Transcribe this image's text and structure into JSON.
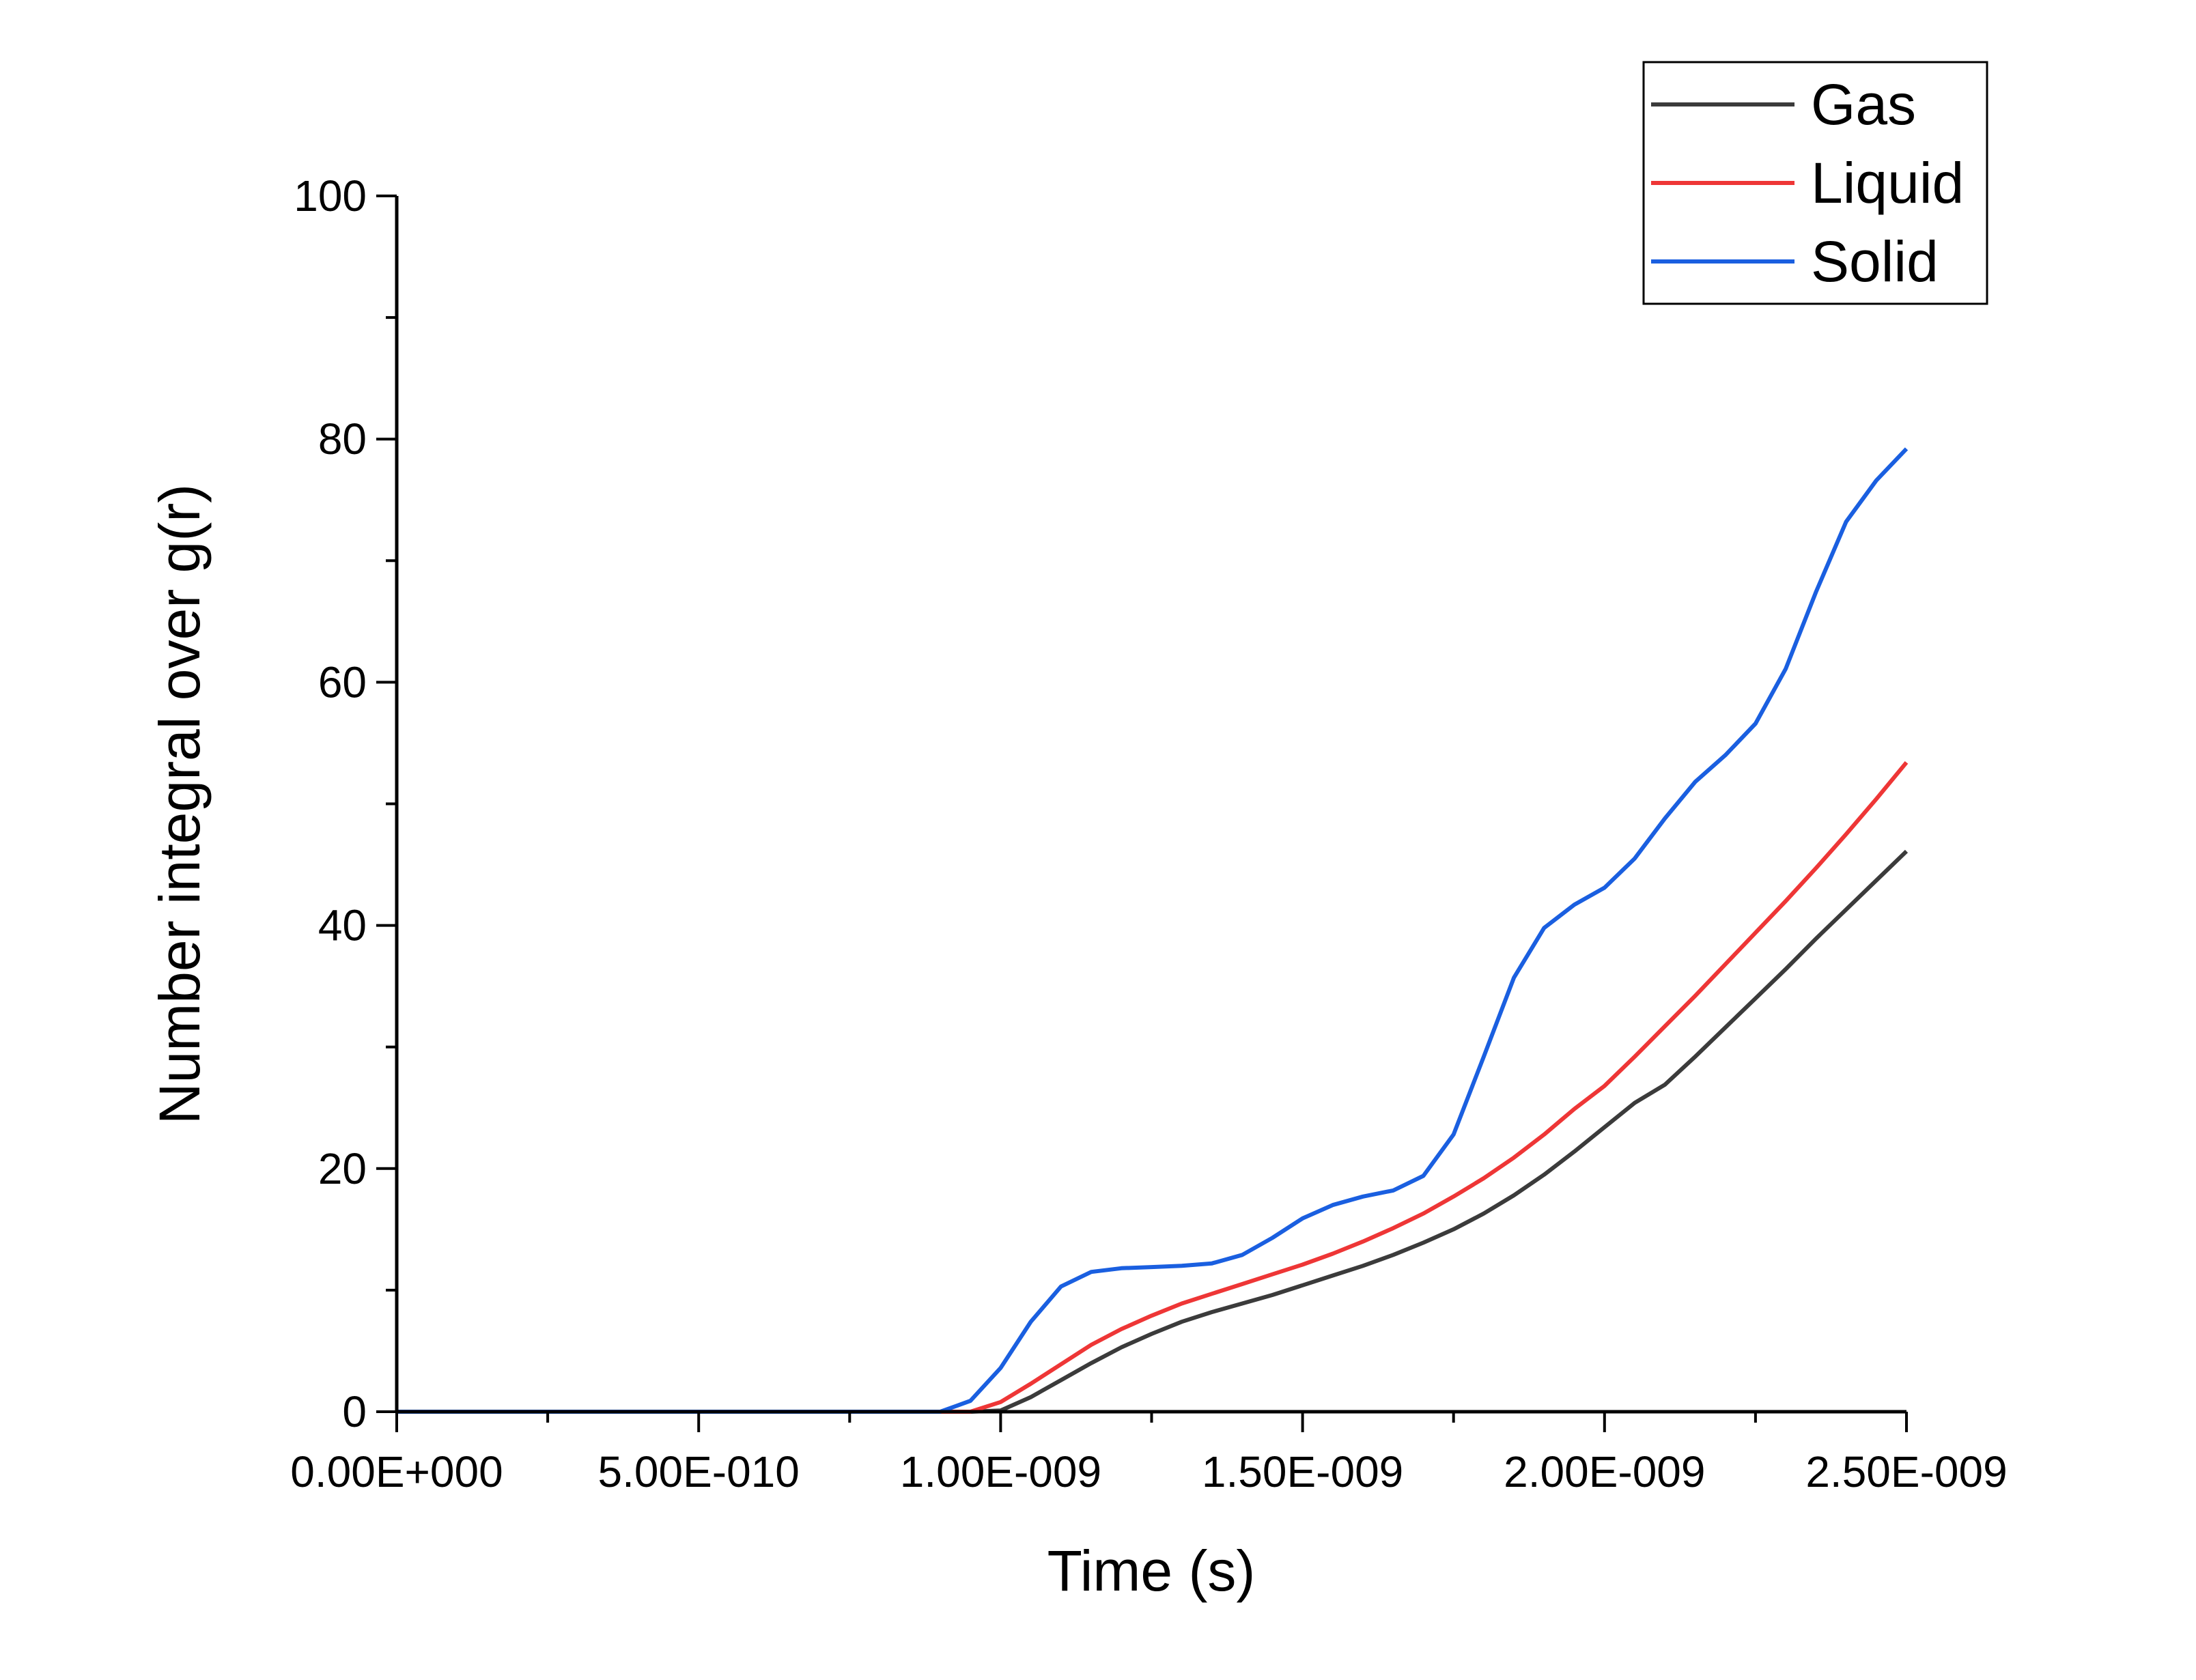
{
  "chart_data": {
    "type": "line",
    "title": "",
    "xlabel": "Time (s)",
    "ylabel": "Number integral over g(r)",
    "xlim": [
      0,
      2.5e-09
    ],
    "ylim": [
      0,
      100
    ],
    "x_ticks": [
      0,
      5e-10,
      1e-09,
      1.5e-09,
      2e-09,
      2.5e-09
    ],
    "x_tick_labels": [
      "0.00E+000",
      "5.00E-010",
      "1.00E-009",
      "1.50E-009",
      "2.00E-009",
      "2.50E-009"
    ],
    "y_ticks": [
      0,
      20,
      40,
      60,
      80,
      100
    ],
    "y_tick_labels": [
      "0",
      "20",
      "40",
      "60",
      "80",
      "100"
    ],
    "grid": false,
    "legend_position": "top-right",
    "x": [
      0,
      5e-11,
      1e-10,
      1.5e-10,
      2e-10,
      2.5e-10,
      3e-10,
      3.5e-10,
      4e-10,
      4.5e-10,
      5e-10,
      5.5e-10,
      6e-10,
      6.5e-10,
      7e-10,
      7.5e-10,
      8e-10,
      8.5e-10,
      9e-10,
      9.5e-10,
      1e-09,
      1.05e-09,
      1.1e-09,
      1.15e-09,
      1.2e-09,
      1.25e-09,
      1.3e-09,
      1.35e-09,
      1.4e-09,
      1.45e-09,
      1.5e-09,
      1.55e-09,
      1.6e-09,
      1.65e-09,
      1.7e-09,
      1.75e-09,
      1.8e-09,
      1.85e-09,
      1.9e-09,
      1.95e-09,
      2e-09,
      2.05e-09,
      2.1e-09,
      2.15e-09,
      2.2e-09,
      2.25e-09,
      2.3e-09,
      2.35e-09,
      2.4e-09,
      2.45e-09,
      2.5e-09
    ],
    "series": [
      {
        "name": "Gas",
        "color": "#3b3b3b",
        "values": [
          0,
          0,
          0,
          0,
          0,
          0,
          0,
          0,
          0,
          0,
          0,
          0,
          0,
          0,
          0,
          0,
          0,
          0,
          0,
          0,
          0.1,
          1.2,
          2.6,
          4.0,
          5.3,
          6.4,
          7.4,
          8.2,
          8.9,
          9.6,
          10.4,
          11.2,
          12.0,
          12.9,
          13.9,
          15.0,
          16.3,
          17.8,
          19.5,
          21.4,
          23.4,
          25.4,
          26.9,
          29.2,
          31.6,
          34.0,
          36.4,
          38.9,
          41.3,
          43.7,
          46.1
        ]
      },
      {
        "name": "Liquid",
        "color": "#ee3636",
        "values": [
          0,
          0,
          0,
          0,
          0,
          0,
          0,
          0,
          0,
          0,
          0,
          0,
          0,
          0,
          0,
          0,
          0,
          0,
          0,
          0,
          0.8,
          2.3,
          3.9,
          5.5,
          6.8,
          7.9,
          8.9,
          9.7,
          10.5,
          11.3,
          12.1,
          13.0,
          14.0,
          15.1,
          16.3,
          17.7,
          19.2,
          20.9,
          22.8,
          24.9,
          26.8,
          29.2,
          31.7,
          34.2,
          36.8,
          39.4,
          42.0,
          44.7,
          47.5,
          50.4,
          53.4
        ]
      },
      {
        "name": "Solid",
        "color": "#1a5fe0",
        "values": [
          0,
          0,
          0,
          0,
          0,
          0,
          0,
          0,
          0,
          0,
          0,
          0,
          0,
          0,
          0,
          0,
          0,
          0,
          0,
          0.9,
          3.6,
          7.4,
          10.3,
          11.5,
          11.8,
          11.9,
          12.0,
          12.2,
          12.9,
          14.3,
          15.9,
          17.0,
          17.7,
          18.2,
          19.4,
          22.8,
          29.2,
          35.7,
          39.8,
          41.7,
          43.1,
          45.5,
          48.8,
          51.8,
          54.0,
          56.6,
          61.1,
          67.4,
          73.2,
          76.6,
          79.2
        ]
      }
    ]
  }
}
